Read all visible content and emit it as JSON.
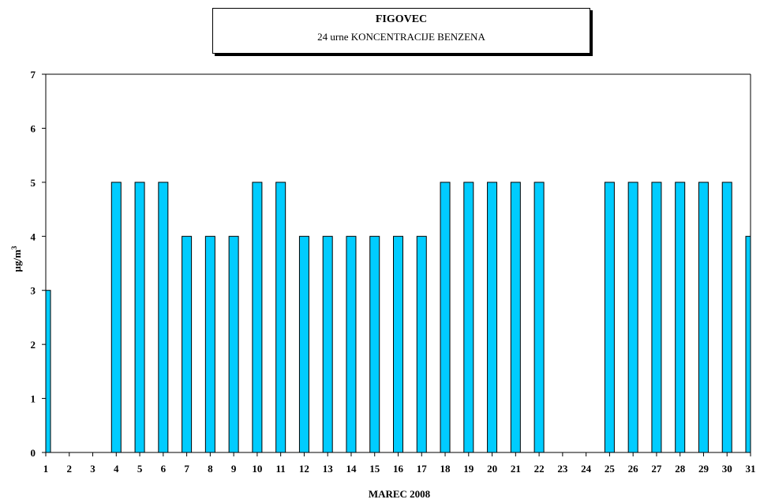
{
  "chart_data": {
    "type": "bar",
    "title": "FIGOVEC",
    "subtitle": "24 urne KONCENTRACIJE BENZENA",
    "xlabel": "MAREC 2008",
    "ylabel": "µg/m",
    "ylabel_superscript": "3",
    "ylim": [
      0,
      7
    ],
    "yticks": [
      0,
      1,
      2,
      3,
      4,
      5,
      6,
      7
    ],
    "categories": [
      "1",
      "2",
      "3",
      "4",
      "5",
      "6",
      "7",
      "8",
      "9",
      "10",
      "11",
      "12",
      "13",
      "14",
      "15",
      "16",
      "17",
      "18",
      "19",
      "20",
      "21",
      "22",
      "23",
      "24",
      "25",
      "26",
      "27",
      "28",
      "29",
      "30",
      "31"
    ],
    "values": [
      3,
      null,
      null,
      5,
      5,
      5,
      4,
      4,
      4,
      5,
      5,
      4,
      4,
      4,
      4,
      4,
      4,
      5,
      5,
      5,
      5,
      5,
      null,
      null,
      5,
      5,
      5,
      5,
      5,
      5,
      4
    ],
    "bar_color": "#00ccff",
    "grid": false
  }
}
